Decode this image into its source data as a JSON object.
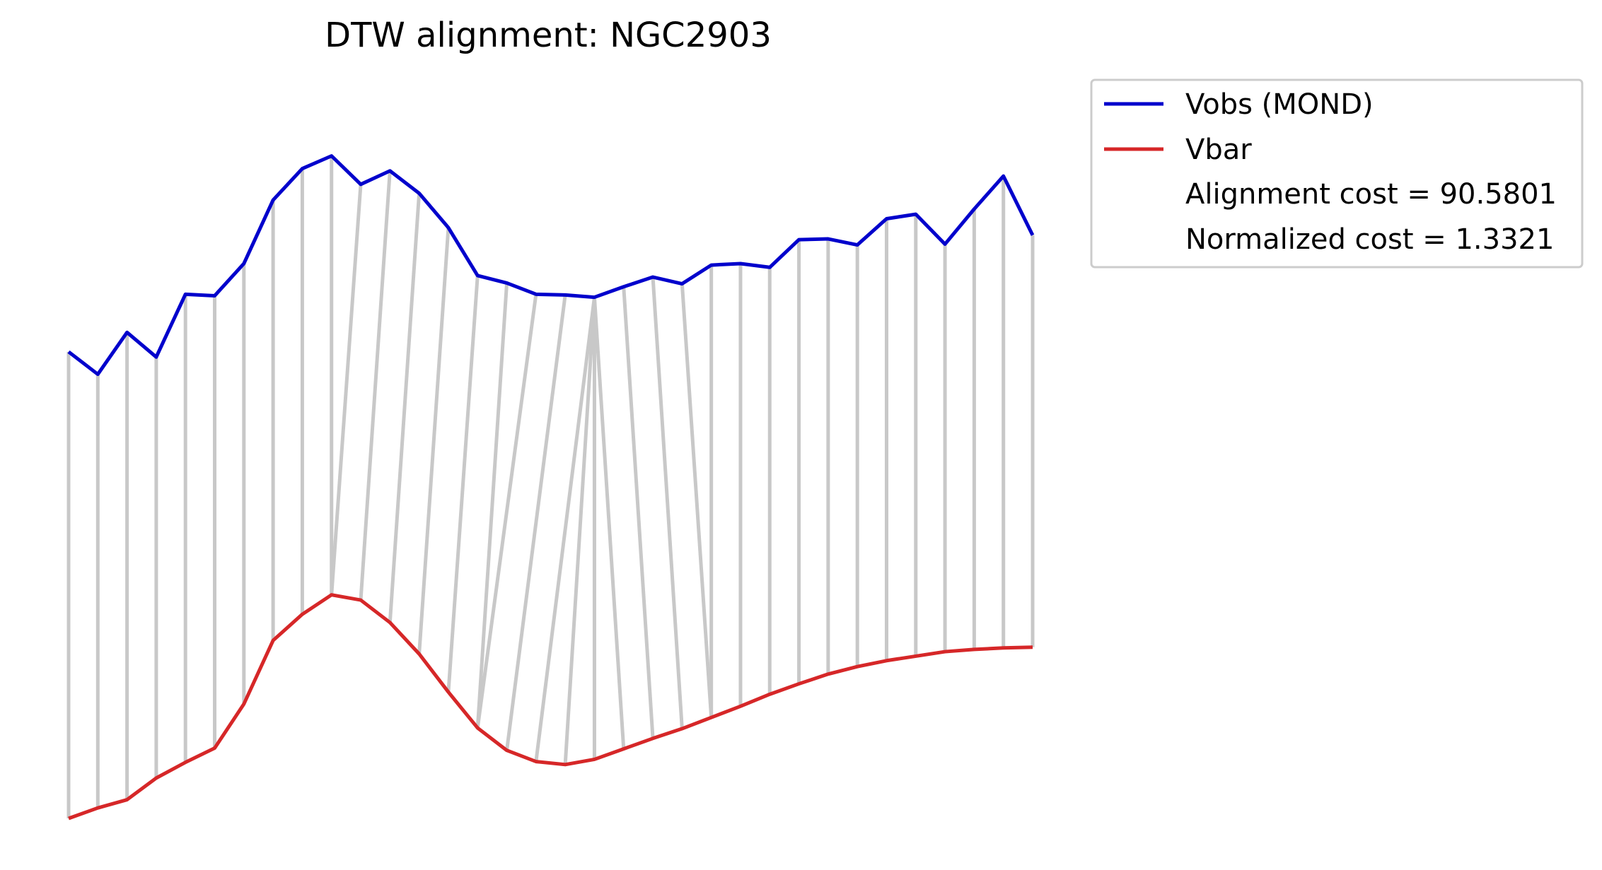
{
  "chart_data": {
    "type": "line",
    "title": "DTW alignment: NGC2903",
    "axes_visible": false,
    "grid": false,
    "legend_position": "outside upper right",
    "x": [
      0,
      1,
      2,
      3,
      4,
      5,
      6,
      7,
      8,
      9,
      10,
      11,
      12,
      13,
      14,
      15,
      16,
      17,
      18,
      19,
      20,
      21,
      22,
      23,
      24,
      25,
      26,
      27,
      28,
      29,
      30,
      31,
      32,
      33
    ],
    "series": [
      {
        "name": "Vobs (MOND)",
        "color": "#0000cc",
        "values": [
          0.624,
          0.594,
          0.65,
          0.617,
          0.701,
          0.699,
          0.742,
          0.827,
          0.869,
          0.886,
          0.848,
          0.866,
          0.836,
          0.79,
          0.726,
          0.716,
          0.701,
          0.7,
          0.697,
          0.711,
          0.724,
          0.715,
          0.74,
          0.742,
          0.737,
          0.774,
          0.775,
          0.767,
          0.802,
          0.808,
          0.768,
          0.815,
          0.859,
          0.78
        ]
      },
      {
        "name": "Vbar",
        "color": "#d62728",
        "values": [
          0.0,
          0.014,
          0.025,
          0.054,
          0.075,
          0.094,
          0.153,
          0.238,
          0.273,
          0.299,
          0.292,
          0.262,
          0.22,
          0.169,
          0.121,
          0.091,
          0.076,
          0.072,
          0.079,
          0.093,
          0.107,
          0.12,
          0.135,
          0.15,
          0.166,
          0.18,
          0.193,
          0.203,
          0.211,
          0.217,
          0.223,
          0.226,
          0.228,
          0.229
        ]
      }
    ],
    "alignment_pairs": [
      [
        0,
        0
      ],
      [
        1,
        1
      ],
      [
        2,
        2
      ],
      [
        3,
        3
      ],
      [
        4,
        4
      ],
      [
        5,
        5
      ],
      [
        6,
        6
      ],
      [
        7,
        7
      ],
      [
        8,
        8
      ],
      [
        9,
        9
      ],
      [
        10,
        9
      ],
      [
        11,
        10
      ],
      [
        12,
        11
      ],
      [
        13,
        12
      ],
      [
        14,
        13
      ],
      [
        15,
        14
      ],
      [
        16,
        14
      ],
      [
        17,
        15
      ],
      [
        18,
        16
      ],
      [
        18,
        17
      ],
      [
        18,
        18
      ],
      [
        18,
        19
      ],
      [
        19,
        20
      ],
      [
        20,
        21
      ],
      [
        21,
        22
      ],
      [
        22,
        22
      ],
      [
        23,
        23
      ],
      [
        24,
        24
      ],
      [
        25,
        25
      ],
      [
        26,
        26
      ],
      [
        27,
        27
      ],
      [
        28,
        28
      ],
      [
        29,
        29
      ],
      [
        30,
        30
      ],
      [
        31,
        31
      ],
      [
        32,
        32
      ],
      [
        33,
        33
      ]
    ],
    "alignment_color": "#c8c8c8",
    "annotations": [
      "Alignment cost = 90.5801",
      "Normalized cost = 1.3321"
    ]
  }
}
